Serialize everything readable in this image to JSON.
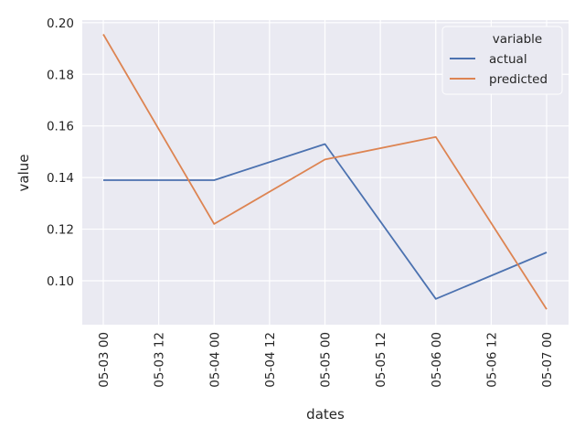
{
  "chart_data": {
    "type": "line",
    "xlabel": "dates",
    "ylabel": "value",
    "x": [
      "05-03 00",
      "05-04 00",
      "05-05 00",
      "05-06 00",
      "05-07 00"
    ],
    "xticks": [
      "05-03 00",
      "05-03 12",
      "05-04 00",
      "05-04 12",
      "05-05 00",
      "05-05 12",
      "05-06 00",
      "05-06 12",
      "05-07 00"
    ],
    "yticks": [
      "0.10",
      "0.12",
      "0.14",
      "0.16",
      "0.18",
      "0.20"
    ],
    "ylim": [
      0.083,
      0.201
    ],
    "grid": true,
    "legend": {
      "title": "variable",
      "placement": "top-right"
    },
    "series": [
      {
        "name": "actual",
        "color": "#4c72b0",
        "values": [
          0.139,
          0.139,
          0.153,
          0.093,
          0.111
        ]
      },
      {
        "name": "predicted",
        "color": "#dd8452",
        "values": [
          0.1955,
          0.122,
          0.147,
          0.1557,
          0.089
        ]
      }
    ]
  },
  "colors": {
    "plot_background": "#eaeaf2",
    "grid": "#ffffff"
  }
}
